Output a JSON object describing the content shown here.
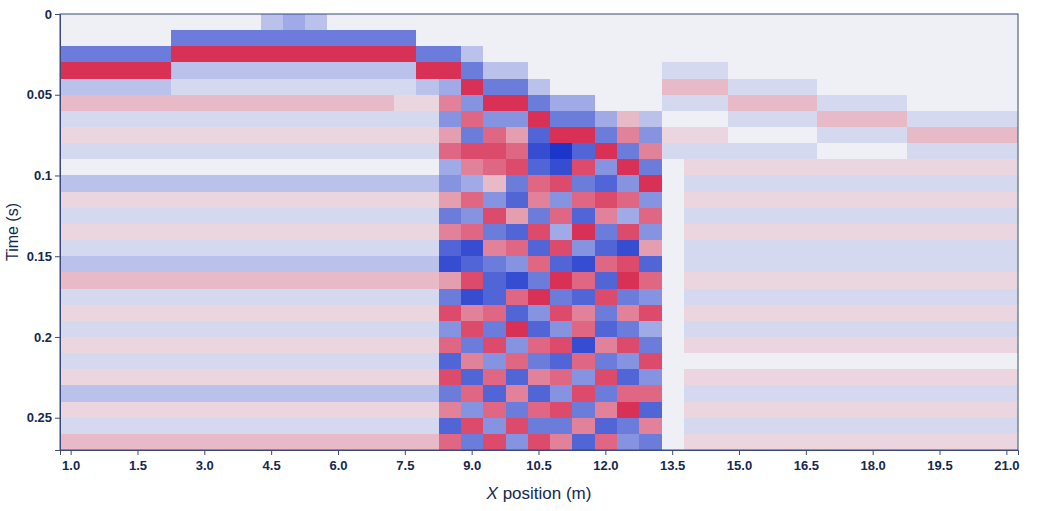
{
  "chart_data": {
    "type": "heatmap",
    "x_label": "X position (m)",
    "y_label": "Time (s)",
    "categories": [
      "1.0",
      null,
      null,
      "1.5",
      null,
      null,
      "3.0",
      null,
      null,
      "4.5",
      null,
      null,
      "6.0",
      null,
      null,
      "7.5",
      null,
      null,
      "9.0",
      null,
      null,
      "10.5",
      null,
      null,
      "12.0",
      null,
      null,
      "13.5",
      null,
      null,
      "15.0",
      null,
      null,
      "16.5",
      null,
      null,
      "18.0",
      null,
      null,
      "19.5",
      null,
      null,
      "21.0"
    ],
    "y_bins": [
      0,
      0.01,
      0.02,
      0.03,
      0.04,
      0.05,
      0.06,
      0.07,
      0.08,
      0.09,
      0.1,
      0.11,
      0.12,
      0.13,
      0.14,
      0.15,
      0.16,
      0.17,
      0.18,
      0.19,
      0.2,
      0.21,
      0.22,
      0.23,
      0.24,
      0.25,
      0.26,
      0.27
    ],
    "ylim": [
      0,
      0.27
    ],
    "yticks": [
      0,
      0.05,
      0.1,
      0.15,
      0.2,
      0.25
    ],
    "zlim": [
      -8,
      8
    ],
    "z": [
      [
        0,
        0,
        0,
        0,
        0,
        0,
        0,
        0,
        0,
        -2,
        -3,
        -2,
        0,
        0,
        0,
        0,
        0,
        0,
        0,
        0,
        0,
        0,
        0,
        0,
        0,
        0,
        0,
        0,
        0,
        0,
        0,
        0,
        0,
        0,
        0,
        0,
        0,
        0,
        0,
        0,
        0,
        0,
        0
      ],
      [
        0,
        0,
        0,
        0,
        0,
        -5,
        -5,
        -5,
        -5,
        -5,
        -5,
        -5,
        -5,
        -5,
        -5,
        -5,
        0,
        0,
        0,
        0,
        0,
        0,
        0,
        0,
        0,
        0,
        0,
        0,
        0,
        0,
        0,
        0,
        0,
        0,
        0,
        0,
        0,
        0,
        0,
        0,
        0,
        0,
        0
      ],
      [
        -5,
        -5,
        -5,
        -5,
        -5,
        7,
        7,
        7,
        7,
        7,
        7,
        7,
        7,
        7,
        7,
        7,
        -5,
        -5,
        -2,
        0,
        0,
        0,
        0,
        0,
        0,
        0,
        0,
        0,
        0,
        0,
        0,
        0,
        0,
        0,
        0,
        0,
        0,
        0,
        0,
        0,
        0,
        0,
        0
      ],
      [
        7,
        7,
        7,
        7,
        7,
        -2,
        -2,
        -2,
        -2,
        -2,
        -2,
        -2,
        -2,
        -2,
        -2,
        -2,
        7,
        7,
        -5,
        -2,
        -2,
        0,
        0,
        0,
        0,
        0,
        0,
        -1,
        -1,
        -1,
        0,
        0,
        0,
        0,
        0,
        0,
        0,
        0,
        0,
        0,
        0,
        0,
        0
      ],
      [
        -2,
        -2,
        -2,
        -2,
        -2,
        -1,
        -1,
        -1,
        -1,
        -1,
        -1,
        -1,
        -1,
        -1,
        -1,
        -1,
        -2,
        -3,
        7,
        -5,
        -5,
        -2,
        0,
        0,
        0,
        0,
        0,
        2,
        2,
        2,
        -1,
        -1,
        -1,
        -1,
        0,
        0,
        0,
        0,
        0,
        0,
        0,
        0,
        0
      ],
      [
        2,
        2,
        2,
        2,
        2,
        2,
        2,
        2,
        2,
        2,
        2,
        2,
        2,
        2,
        2,
        1,
        1,
        4,
        -4,
        7,
        7,
        -5,
        -3,
        -3,
        0,
        0,
        0,
        -1,
        -1,
        -1,
        2,
        2,
        2,
        2,
        -1,
        -1,
        -1,
        -1,
        0,
        0,
        0,
        0,
        0
      ],
      [
        -1,
        -1,
        -1,
        -1,
        -1,
        -1,
        -1,
        -1,
        -1,
        -1,
        -1,
        -1,
        -1,
        -1,
        -1,
        -1,
        -1,
        -4,
        5,
        -4,
        -4,
        7,
        -5,
        -5,
        -3,
        2,
        -2,
        0,
        0,
        0,
        -1,
        -1,
        -1,
        -1,
        2,
        2,
        2,
        2,
        -1,
        -1,
        -1,
        -1,
        -1
      ],
      [
        1,
        1,
        1,
        1,
        1,
        1,
        1,
        1,
        1,
        1,
        1,
        1,
        1,
        1,
        1,
        1,
        1,
        3,
        -5,
        5,
        3,
        -6,
        7,
        7,
        -5,
        4,
        -4,
        1,
        1,
        1,
        0,
        0,
        0,
        0,
        -1,
        -1,
        -1,
        -1,
        2,
        2,
        2,
        2,
        2
      ],
      [
        -1,
        -1,
        -1,
        -1,
        -1,
        -1,
        -1,
        -1,
        -1,
        -1,
        -1,
        -1,
        -1,
        -1,
        -1,
        -1,
        -1,
        5,
        6,
        6,
        5,
        -7,
        -8,
        -6,
        7,
        -5,
        4,
        -1,
        -1,
        -1,
        -1,
        -1,
        -1,
        -1,
        0,
        0,
        0,
        0,
        -1,
        -1,
        -1,
        -1,
        -1
      ],
      [
        0,
        0,
        0,
        0,
        0,
        0,
        0,
        0,
        0,
        0,
        0,
        0,
        0,
        0,
        0,
        0,
        0,
        -3,
        4,
        5,
        6,
        -6,
        -7,
        6,
        -4,
        7,
        -5,
        0,
        1,
        1,
        1,
        1,
        1,
        1,
        1,
        1,
        1,
        1,
        1,
        1,
        1,
        1,
        1
      ],
      [
        -2,
        -2,
        -2,
        -2,
        -2,
        -2,
        -2,
        -2,
        -2,
        -2,
        -2,
        -2,
        -2,
        -2,
        -2,
        -2,
        -2,
        -4,
        -3,
        2,
        -5,
        5,
        6,
        -5,
        -6,
        -4,
        7,
        0,
        -1,
        -1,
        -1,
        -1,
        -1,
        -1,
        -1,
        -1,
        -1,
        -1,
        -1,
        -1,
        -1,
        -1,
        -1
      ],
      [
        1,
        1,
        1,
        1,
        1,
        1,
        1,
        1,
        1,
        1,
        1,
        1,
        1,
        1,
        1,
        1,
        1,
        3,
        5,
        -4,
        -6,
        4,
        -4,
        5,
        6,
        5,
        -4,
        0,
        1,
        1,
        1,
        1,
        1,
        1,
        1,
        1,
        1,
        1,
        1,
        1,
        1,
        1,
        1
      ],
      [
        -1,
        -1,
        -1,
        -1,
        -1,
        -1,
        -1,
        -1,
        -1,
        -1,
        -1,
        -1,
        -1,
        -1,
        -1,
        -1,
        -1,
        -5,
        -4,
        6,
        3,
        -5,
        5,
        -6,
        4,
        -3,
        5,
        0,
        -1,
        -1,
        -1,
        -1,
        -1,
        -1,
        -1,
        -1,
        -1,
        -1,
        -1,
        -1,
        -1,
        -1,
        -1
      ],
      [
        1,
        1,
        1,
        1,
        1,
        1,
        1,
        1,
        1,
        1,
        1,
        1,
        1,
        1,
        1,
        1,
        1,
        4,
        5,
        -5,
        -6,
        6,
        -3,
        7,
        -5,
        6,
        -4,
        0,
        1,
        1,
        1,
        1,
        1,
        1,
        1,
        1,
        1,
        1,
        1,
        1,
        1,
        1,
        1
      ],
      [
        -1,
        -1,
        -1,
        -1,
        -1,
        -1,
        -1,
        -1,
        -1,
        -1,
        -1,
        -1,
        -1,
        -1,
        -1,
        -1,
        -1,
        -6,
        -7,
        4,
        5,
        -6,
        6,
        -4,
        -6,
        -7,
        3,
        0,
        -1,
        -1,
        -1,
        -1,
        -1,
        -1,
        -1,
        -1,
        -1,
        -1,
        -1,
        -1,
        -1,
        -1,
        -1
      ],
      [
        -2,
        -2,
        -2,
        -2,
        -2,
        -2,
        -2,
        -2,
        -2,
        -2,
        -2,
        -2,
        -2,
        -2,
        -2,
        -2,
        -2,
        -7,
        -6,
        -5,
        -4,
        5,
        -6,
        -7,
        5,
        6,
        -6,
        0,
        -1,
        -1,
        -1,
        -1,
        -1,
        -1,
        -1,
        -1,
        -1,
        -1,
        -1,
        -1,
        -1,
        -1,
        -1
      ],
      [
        2,
        2,
        2,
        2,
        2,
        2,
        2,
        2,
        2,
        2,
        2,
        2,
        2,
        2,
        2,
        2,
        2,
        3,
        6,
        -6,
        -7,
        -5,
        7,
        5,
        -6,
        7,
        5,
        0,
        1,
        1,
        1,
        1,
        1,
        1,
        1,
        1,
        1,
        1,
        1,
        1,
        1,
        1,
        1
      ],
      [
        -1,
        -1,
        -1,
        -1,
        -1,
        -1,
        -1,
        -1,
        -1,
        -1,
        -1,
        -1,
        -1,
        -1,
        -1,
        -1,
        -1,
        -5,
        -7,
        -6,
        5,
        7,
        -5,
        -6,
        6,
        -5,
        -4,
        0,
        -1,
        -1,
        -1,
        -1,
        -1,
        -1,
        -1,
        -1,
        -1,
        -1,
        -1,
        -1,
        -1,
        -1,
        -1
      ],
      [
        1,
        1,
        1,
        1,
        1,
        1,
        1,
        1,
        1,
        1,
        1,
        1,
        1,
        1,
        1,
        1,
        1,
        6,
        4,
        5,
        -6,
        -4,
        6,
        4,
        -5,
        4,
        6,
        0,
        1,
        1,
        1,
        1,
        1,
        1,
        1,
        1,
        1,
        1,
        1,
        1,
        1,
        1,
        1
      ],
      [
        -1,
        -1,
        -1,
        -1,
        -1,
        -1,
        -1,
        -1,
        -1,
        -1,
        -1,
        -1,
        -1,
        -1,
        -1,
        -1,
        -1,
        -4,
        6,
        -5,
        7,
        -6,
        -4,
        5,
        -6,
        -5,
        -3,
        0,
        -1,
        -1,
        -1,
        -1,
        -1,
        -1,
        -1,
        -1,
        -1,
        -1,
        -1,
        -1,
        -1,
        -1,
        -1
      ],
      [
        1,
        1,
        1,
        1,
        1,
        1,
        1,
        1,
        1,
        1,
        1,
        1,
        1,
        1,
        1,
        1,
        1,
        5,
        -5,
        6,
        -4,
        5,
        6,
        -7,
        4,
        6,
        -5,
        0,
        1,
        1,
        1,
        1,
        1,
        1,
        1,
        1,
        1,
        1,
        1,
        1,
        1,
        1,
        1
      ],
      [
        -1,
        -1,
        -1,
        -1,
        -1,
        -1,
        -1,
        -1,
        -1,
        -1,
        -1,
        -1,
        -1,
        -1,
        -1,
        -1,
        -1,
        -6,
        4,
        -4,
        5,
        -5,
        -6,
        5,
        -5,
        -4,
        6,
        0,
        0,
        0,
        0,
        0,
        0,
        0,
        0,
        0,
        0,
        0,
        0,
        0,
        0,
        0,
        0
      ],
      [
        1,
        1,
        1,
        1,
        1,
        1,
        1,
        1,
        1,
        1,
        1,
        1,
        1,
        1,
        1,
        1,
        1,
        6,
        -6,
        5,
        -6,
        4,
        5,
        -4,
        6,
        -6,
        -4,
        0,
        1,
        1,
        1,
        1,
        1,
        1,
        1,
        1,
        1,
        1,
        1,
        1,
        1,
        1,
        1
      ],
      [
        -2,
        -2,
        -2,
        -2,
        -2,
        -2,
        -2,
        -2,
        -2,
        -2,
        -2,
        -2,
        -2,
        -2,
        -2,
        -2,
        -2,
        -5,
        5,
        -6,
        4,
        -6,
        -4,
        6,
        -5,
        5,
        5,
        0,
        -1,
        -1,
        -1,
        -1,
        -1,
        -1,
        -1,
        -1,
        -1,
        -1,
        -1,
        -1,
        -1,
        -1,
        -1
      ],
      [
        1,
        1,
        1,
        1,
        1,
        1,
        1,
        1,
        1,
        1,
        1,
        1,
        1,
        1,
        1,
        1,
        1,
        4,
        -4,
        5,
        -5,
        5,
        6,
        -5,
        4,
        7,
        -6,
        0,
        1,
        1,
        1,
        1,
        1,
        1,
        1,
        1,
        1,
        1,
        1,
        1,
        1,
        1,
        1
      ],
      [
        -1,
        -1,
        -1,
        -1,
        -1,
        -1,
        -1,
        -1,
        -1,
        -1,
        -1,
        -1,
        -1,
        -1,
        -1,
        -1,
        -1,
        -6,
        6,
        -4,
        6,
        -5,
        -5,
        4,
        -6,
        -5,
        4,
        0,
        -1,
        -1,
        -1,
        -1,
        -1,
        -1,
        -1,
        -1,
        -1,
        -1,
        -1,
        -1,
        -1,
        -1,
        -1
      ],
      [
        2,
        2,
        2,
        2,
        2,
        2,
        2,
        2,
        2,
        2,
        2,
        2,
        2,
        2,
        2,
        2,
        2,
        5,
        -5,
        6,
        -4,
        6,
        4,
        -6,
        5,
        -4,
        -5,
        0,
        1,
        1,
        1,
        1,
        1,
        1,
        1,
        1,
        1,
        1,
        1,
        1,
        1,
        1,
        1
      ]
    ]
  }
}
